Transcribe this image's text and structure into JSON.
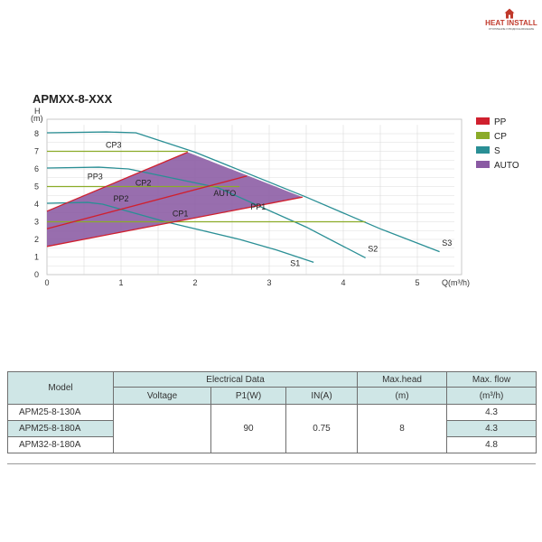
{
  "logo": {
    "name": "HEAT INSTALL",
    "tagline": "ОТОПЛЕНИЕ И ВОДОСНАБЖЕНИЕ",
    "color": "#c0392b"
  },
  "chart_data": {
    "type": "line",
    "title": "APMXX-8-XXX",
    "ylabel_top": "H",
    "ylabel_unit": "(m)",
    "xlabel": "Q(m³/h)",
    "xlim": [
      0,
      5.5
    ],
    "ylim": [
      0,
      8.5
    ],
    "xticks": [
      "0",
      "1",
      "2",
      "3",
      "4",
      "5"
    ],
    "yticks": [
      "0",
      "1",
      "2",
      "3",
      "4",
      "5",
      "6",
      "7",
      "8"
    ],
    "grid": true,
    "legend_position": "right",
    "legend": [
      {
        "label": "PP",
        "color": "#d0202e"
      },
      {
        "label": "CP",
        "color": "#8bab28"
      },
      {
        "label": "S",
        "color": "#2a8f95"
      },
      {
        "label": "AUTO",
        "color": "#8a5aa3"
      }
    ],
    "auto_region": {
      "label": "AUTO",
      "points": [
        [
          0,
          1.6
        ],
        [
          0,
          3.6
        ],
        [
          1.9,
          6.95
        ],
        [
          3.45,
          4.4
        ]
      ],
      "color": "#8a5aa3"
    },
    "series": [
      {
        "name": "S1",
        "group": "S",
        "color": "#2a8f95",
        "points": [
          [
            0,
            4.05
          ],
          [
            0.55,
            4.1
          ],
          [
            0.75,
            4.0
          ],
          [
            1.6,
            3.0
          ],
          [
            2.6,
            2.0
          ],
          [
            3.1,
            1.4
          ],
          [
            3.6,
            0.7
          ]
        ]
      },
      {
        "name": "S2",
        "group": "S",
        "color": "#2a8f95",
        "points": [
          [
            0,
            6.05
          ],
          [
            0.7,
            6.1
          ],
          [
            1.1,
            6.0
          ],
          [
            2.3,
            4.95
          ],
          [
            3.5,
            2.7
          ],
          [
            4.3,
            0.95
          ]
        ]
      },
      {
        "name": "S3",
        "group": "S",
        "color": "#2a8f95",
        "points": [
          [
            0,
            8.05
          ],
          [
            0.8,
            8.1
          ],
          [
            1.2,
            8.05
          ],
          [
            2.0,
            6.95
          ],
          [
            3.5,
            4.4
          ],
          [
            4.5,
            2.6
          ],
          [
            5.3,
            1.3
          ]
        ]
      },
      {
        "name": "CP1",
        "group": "CP",
        "color": "#8bab28",
        "points": [
          [
            0,
            3.0
          ],
          [
            4.3,
            3.0
          ]
        ]
      },
      {
        "name": "CP2",
        "group": "CP",
        "color": "#8bab28",
        "points": [
          [
            0,
            5.0
          ],
          [
            2.6,
            5.0
          ]
        ]
      },
      {
        "name": "CP3",
        "group": "CP",
        "color": "#8bab28",
        "points": [
          [
            0,
            7.0
          ],
          [
            1.9,
            7.0
          ]
        ]
      },
      {
        "name": "PP1",
        "group": "PP",
        "color": "#d0202e",
        "points": [
          [
            0,
            1.6
          ],
          [
            3.45,
            4.4
          ]
        ]
      },
      {
        "name": "PP2",
        "group": "PP",
        "color": "#d0202e",
        "points": [
          [
            0,
            2.6
          ],
          [
            2.7,
            5.6
          ]
        ]
      },
      {
        "name": "PP3",
        "group": "PP",
        "color": "#d0202e",
        "points": [
          [
            0,
            3.6
          ],
          [
            1.9,
            6.95
          ]
        ]
      }
    ],
    "annotations": [
      {
        "text": "CP3",
        "x": 0.9,
        "y": 7.2
      },
      {
        "text": "PP3",
        "x": 0.65,
        "y": 5.4
      },
      {
        "text": "CP2",
        "x": 1.3,
        "y": 5.05
      },
      {
        "text": "PP2",
        "x": 1.0,
        "y": 4.15
      },
      {
        "text": "AUTO",
        "x": 2.4,
        "y": 4.45
      },
      {
        "text": "PP1",
        "x": 2.85,
        "y": 3.7
      },
      {
        "text": "CP1",
        "x": 1.8,
        "y": 3.3
      },
      {
        "text": "S1",
        "x": 3.35,
        "y": 0.5
      },
      {
        "text": "S2",
        "x": 4.4,
        "y": 1.3
      },
      {
        "text": "S3",
        "x": 5.4,
        "y": 1.65
      }
    ]
  },
  "table": {
    "headers": {
      "model": "Model",
      "electrical": "Electrical Data",
      "voltage": "Voltage",
      "p1": "P1(W)",
      "in": "IN(A)",
      "max_head": "Max.head",
      "max_head_unit": "(m)",
      "max_flow": "Max. flow",
      "max_flow_unit": "(m³/h)"
    },
    "rows": [
      {
        "model": "APM25-8-130A",
        "flow": "4.3"
      },
      {
        "model": "APM25-8-180A",
        "flow": "4.3"
      },
      {
        "model": "APM32-8-180A",
        "flow": "4.8"
      }
    ],
    "voltage": "",
    "p1": "90",
    "in": "0.75",
    "max_head": "8"
  }
}
